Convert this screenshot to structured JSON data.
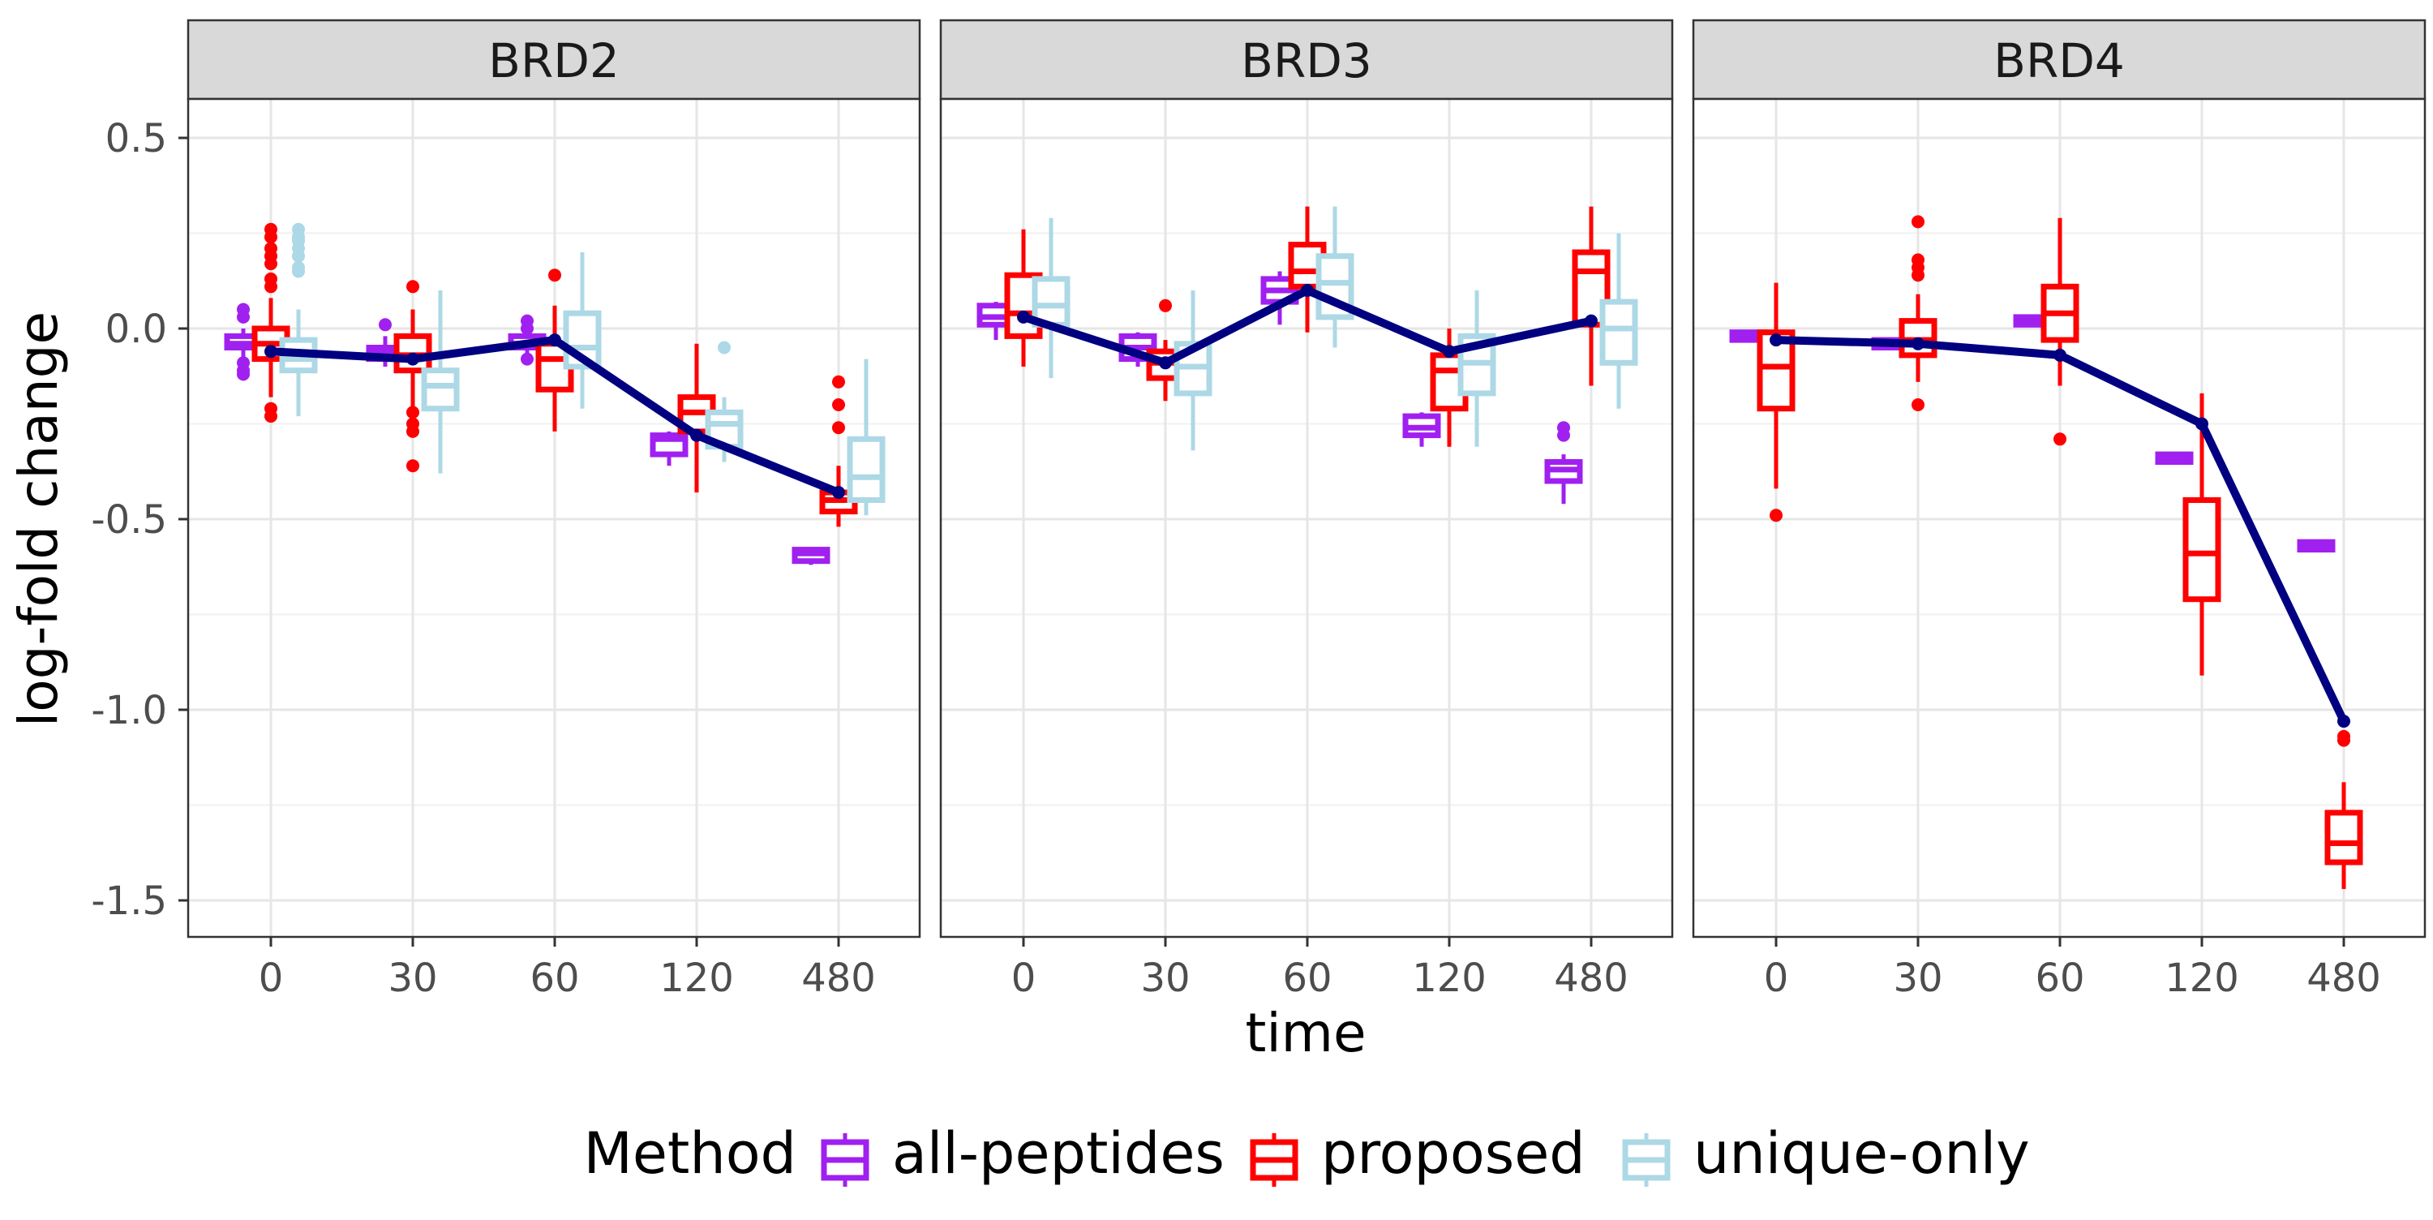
{
  "chart_data": {
    "type": "box",
    "facet_variable": "protein",
    "panels": [
      "BRD2",
      "BRD3",
      "BRD4"
    ],
    "categories": [
      "0",
      "30",
      "60",
      "120",
      "480"
    ],
    "xlabel": "time",
    "ylabel": "log-fold change",
    "ylim": [
      -1.6,
      0.6
    ],
    "yticks": [
      "0.5",
      "0.0",
      "-0.5",
      "-1.0",
      "-1.5"
    ],
    "ytick_values": [
      0.5,
      0.0,
      -0.5,
      -1.0,
      -1.5
    ],
    "grid": true,
    "legend": {
      "title": "Method",
      "position": "bottom",
      "items": [
        {
          "label": "all-peptides",
          "color": "#A020F0"
        },
        {
          "label": "proposed",
          "color": "#FF0000"
        },
        {
          "label": "unique-only",
          "color": "#ADD8E6"
        }
      ]
    },
    "trend_color": "#000080",
    "trend_line": {
      "BRD2": [
        -0.06,
        -0.08,
        -0.03,
        -0.28,
        -0.43
      ],
      "BRD3": [
        0.03,
        -0.09,
        0.1,
        -0.06,
        0.02
      ],
      "BRD4": [
        -0.03,
        -0.04,
        -0.07,
        -0.25,
        -1.03
      ]
    },
    "boxes": {
      "BRD2": {
        "all-peptides": [
          {
            "q1": -0.05,
            "median": -0.04,
            "q3": -0.02,
            "lo": -0.08,
            "hi": 0.0,
            "outliers": [
              0.05,
              0.03,
              -0.09,
              -0.11,
              -0.12
            ]
          },
          {
            "q1": -0.08,
            "median": -0.06,
            "q3": -0.05,
            "lo": -0.1,
            "hi": -0.02,
            "outliers": [
              0.01
            ]
          },
          {
            "q1": -0.05,
            "median": -0.04,
            "q3": -0.02,
            "lo": -0.07,
            "hi": 0.0,
            "outliers": [
              0.02,
              0.0,
              -0.08
            ]
          },
          {
            "q1": -0.33,
            "median": -0.29,
            "q3": -0.28,
            "lo": -0.36,
            "hi": -0.27,
            "outliers": []
          },
          {
            "q1": -0.61,
            "median": -0.59,
            "q3": -0.58,
            "lo": -0.62,
            "hi": -0.58,
            "outliers": []
          }
        ],
        "proposed": [
          {
            "q1": -0.08,
            "median": -0.04,
            "q3": 0.0,
            "lo": -0.18,
            "hi": 0.08,
            "outliers": [
              0.26,
              0.24,
              0.21,
              0.19,
              0.17,
              0.13,
              0.11,
              -0.21,
              -0.23
            ]
          },
          {
            "q1": -0.11,
            "median": -0.07,
            "q3": -0.02,
            "lo": -0.22,
            "hi": 0.05,
            "outliers": [
              0.11,
              -0.22,
              -0.25,
              -0.27,
              -0.36
            ]
          },
          {
            "q1": -0.16,
            "median": -0.08,
            "q3": -0.04,
            "lo": -0.27,
            "hi": 0.06,
            "outliers": [
              0.14
            ]
          },
          {
            "q1": -0.27,
            "median": -0.22,
            "q3": -0.18,
            "lo": -0.43,
            "hi": -0.04,
            "outliers": []
          },
          {
            "q1": -0.48,
            "median": -0.45,
            "q3": -0.43,
            "lo": -0.52,
            "hi": -0.36,
            "outliers": [
              -0.14,
              -0.2,
              -0.26
            ]
          }
        ],
        "unique-only": [
          {
            "q1": -0.11,
            "median": -0.08,
            "q3": -0.03,
            "lo": -0.23,
            "hi": 0.05,
            "outliers": [
              0.26,
              0.24,
              0.23,
              0.21,
              0.19,
              0.16,
              0.15
            ]
          },
          {
            "q1": -0.21,
            "median": -0.15,
            "q3": -0.11,
            "lo": -0.38,
            "hi": 0.1,
            "outliers": []
          },
          {
            "q1": -0.1,
            "median": -0.05,
            "q3": 0.04,
            "lo": -0.21,
            "hi": 0.2,
            "outliers": []
          },
          {
            "q1": -0.31,
            "median": -0.25,
            "q3": -0.22,
            "lo": -0.35,
            "hi": -0.18,
            "outliers": [
              -0.05
            ]
          },
          {
            "q1": -0.45,
            "median": -0.39,
            "q3": -0.29,
            "lo": -0.49,
            "hi": -0.08,
            "outliers": []
          }
        ]
      },
      "BRD3": {
        "all-peptides": [
          {
            "q1": 0.01,
            "median": 0.03,
            "q3": 0.06,
            "lo": -0.03,
            "hi": 0.07,
            "outliers": []
          },
          {
            "q1": -0.08,
            "median": -0.05,
            "q3": -0.02,
            "lo": -0.1,
            "hi": -0.01,
            "outliers": []
          },
          {
            "q1": 0.07,
            "median": 0.1,
            "q3": 0.13,
            "lo": 0.01,
            "hi": 0.15,
            "outliers": []
          },
          {
            "q1": -0.28,
            "median": -0.26,
            "q3": -0.23,
            "lo": -0.31,
            "hi": -0.22,
            "outliers": []
          },
          {
            "q1": -0.4,
            "median": -0.37,
            "q3": -0.35,
            "lo": -0.46,
            "hi": -0.33,
            "outliers": [
              -0.26,
              -0.28
            ]
          }
        ],
        "proposed": [
          {
            "q1": -0.02,
            "median": 0.04,
            "q3": 0.14,
            "lo": -0.1,
            "hi": 0.26,
            "outliers": []
          },
          {
            "q1": -0.13,
            "median": -0.09,
            "q3": -0.06,
            "lo": -0.19,
            "hi": -0.03,
            "outliers": [
              0.06
            ]
          },
          {
            "q1": 0.11,
            "median": 0.15,
            "q3": 0.22,
            "lo": -0.01,
            "hi": 0.32,
            "outliers": []
          },
          {
            "q1": -0.21,
            "median": -0.11,
            "q3": -0.07,
            "lo": -0.31,
            "hi": 0.0,
            "outliers": []
          },
          {
            "q1": 0.01,
            "median": 0.15,
            "q3": 0.2,
            "lo": -0.15,
            "hi": 0.32,
            "outliers": []
          }
        ],
        "unique-only": [
          {
            "q1": 0.01,
            "median": 0.06,
            "q3": 0.13,
            "lo": -0.13,
            "hi": 0.29,
            "outliers": []
          },
          {
            "q1": -0.17,
            "median": -0.1,
            "q3": -0.04,
            "lo": -0.32,
            "hi": 0.1,
            "outliers": []
          },
          {
            "q1": 0.03,
            "median": 0.12,
            "q3": 0.19,
            "lo": -0.05,
            "hi": 0.32,
            "outliers": []
          },
          {
            "q1": -0.17,
            "median": -0.09,
            "q3": -0.02,
            "lo": -0.31,
            "hi": 0.1,
            "outliers": []
          },
          {
            "q1": -0.09,
            "median": 0.0,
            "q3": 0.07,
            "lo": -0.21,
            "hi": 0.25,
            "outliers": []
          }
        ]
      },
      "BRD4": {
        "all-peptides": [
          {
            "q1": -0.03,
            "median": -0.02,
            "q3": -0.01,
            "lo": -0.03,
            "hi": -0.01,
            "outliers": []
          },
          {
            "q1": -0.05,
            "median": -0.04,
            "q3": -0.03,
            "lo": -0.05,
            "hi": -0.03,
            "outliers": []
          },
          {
            "q1": 0.01,
            "median": 0.02,
            "q3": 0.03,
            "lo": 0.01,
            "hi": 0.03,
            "outliers": []
          },
          {
            "q1": -0.35,
            "median": -0.34,
            "q3": -0.33,
            "lo": -0.35,
            "hi": -0.33,
            "outliers": []
          },
          {
            "q1": -0.58,
            "median": -0.57,
            "q3": -0.56,
            "lo": -0.58,
            "hi": -0.56,
            "outliers": []
          }
        ],
        "proposed": [
          {
            "q1": -0.21,
            "median": -0.1,
            "q3": -0.01,
            "lo": -0.42,
            "hi": 0.12,
            "outliers": [
              -0.49
            ]
          },
          {
            "q1": -0.07,
            "median": -0.03,
            "q3": 0.02,
            "lo": -0.14,
            "hi": 0.09,
            "outliers": [
              0.28,
              0.18,
              0.16,
              0.14,
              -0.2
            ]
          },
          {
            "q1": -0.03,
            "median": 0.04,
            "q3": 0.11,
            "lo": -0.15,
            "hi": 0.29,
            "outliers": [
              -0.29
            ]
          },
          {
            "q1": -0.71,
            "median": -0.59,
            "q3": -0.45,
            "lo": -0.91,
            "hi": -0.17,
            "outliers": []
          },
          {
            "q1": -1.4,
            "median": -1.35,
            "q3": -1.27,
            "lo": -1.47,
            "hi": -1.19,
            "outliers": [
              -1.07,
              -1.08
            ]
          }
        ]
      }
    }
  }
}
